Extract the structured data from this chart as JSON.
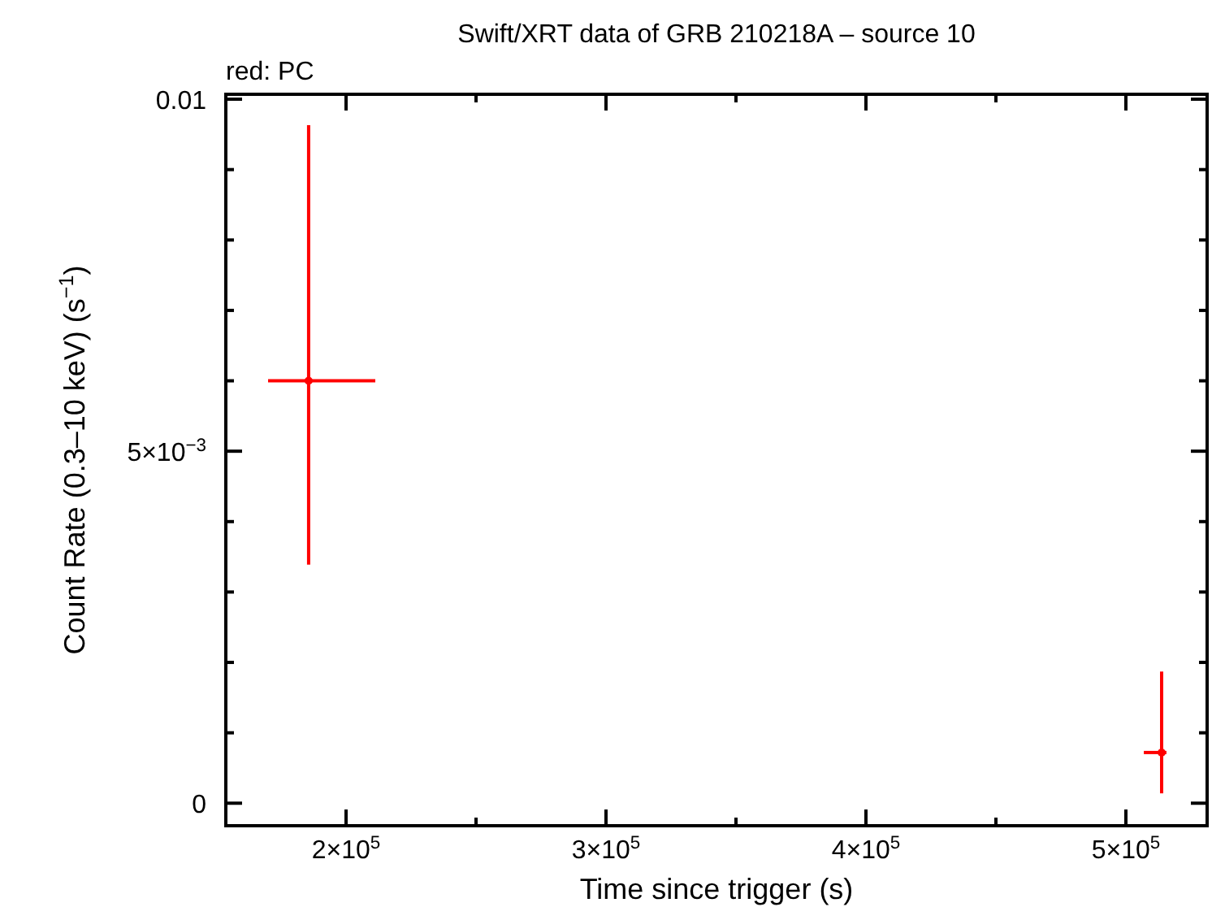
{
  "chart_data": {
    "type": "scatter",
    "title": "Swift/XRT data of GRB 210218A – source 10",
    "xlabel": "Time since trigger (s)",
    "ylabel": "Count Rate (0.3–10 keV) (s$^{−1}$)",
    "annotations": [
      "red: PC"
    ],
    "x": [
      185600,
      513750
    ],
    "series": [
      {
        "color": "#ff0000",
        "values": [
          0.006,
          0.00072
        ],
        "errors": [
          [
            0.00339,
            0.00963
          ],
          [
            0.00014,
            0.00187
          ]
        ],
        "xerrors": [
          [
            170000,
            211250
          ],
          [
            506900,
            515600
          ]
        ]
      }
    ],
    "grid": false,
    "xlim": [
      153750,
      531250
    ],
    "ylim": [
      -0.00032,
      0.01007
    ],
    "xticks": [
      {
        "value": 200000,
        "label": "2×10$^{5}$"
      },
      {
        "value": 250000,
        "label": null
      },
      {
        "value": 300000,
        "label": "3×10$^{5}$"
      },
      {
        "value": 350000,
        "label": null
      },
      {
        "value": 400000,
        "label": "4×10$^{5}$"
      },
      {
        "value": 450000,
        "label": null
      },
      {
        "value": 500000,
        "label": "5×10$^{5}$"
      }
    ],
    "yticks": [
      {
        "value": 0,
        "label": "0"
      },
      {
        "value": 0.001,
        "label": null
      },
      {
        "value": 0.002,
        "label": null
      },
      {
        "value": 0.003,
        "label": null
      },
      {
        "value": 0.004,
        "label": null
      },
      {
        "value": 0.005,
        "label": "5×10$^{−3}$"
      },
      {
        "value": 0.006,
        "label": null
      },
      {
        "value": 0.007,
        "label": null
      },
      {
        "value": 0.008,
        "label": null
      },
      {
        "value": 0.009,
        "label": null
      },
      {
        "value": 0.01,
        "label": "0.01"
      }
    ]
  }
}
